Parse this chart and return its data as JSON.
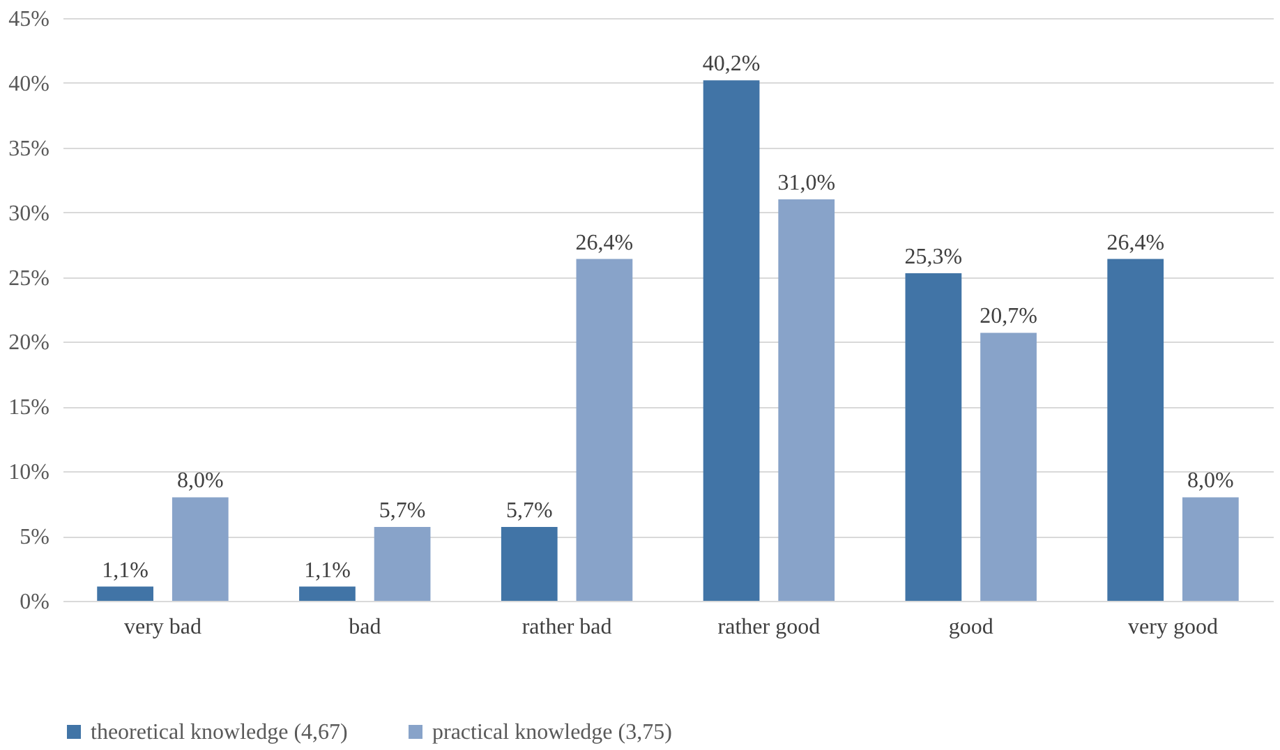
{
  "chart_data": {
    "type": "bar",
    "categories": [
      "very bad",
      "bad",
      "rather bad",
      "rather good",
      "good",
      "very good"
    ],
    "series": [
      {
        "name": "theoretical knowledge (4,67)",
        "color": "#4174a6",
        "values": [
          1.1,
          1.1,
          5.7,
          40.2,
          25.3,
          26.4
        ],
        "value_labels": [
          "1,1%",
          "1,1%",
          "5,7%",
          "40,2%",
          "25,3%",
          "26,4%"
        ]
      },
      {
        "name": "practical knowledge (3,75)",
        "color": "#88a3c9",
        "values": [
          8.0,
          5.7,
          26.4,
          31.0,
          20.7,
          8.0
        ],
        "value_labels": [
          "8,0%",
          "5,7%",
          "26,4%",
          "31,0%",
          "20,7%",
          "8,0%"
        ]
      }
    ],
    "ylim": [
      0,
      45
    ],
    "yticks": [
      {
        "value": 0,
        "label": "0%"
      },
      {
        "value": 5,
        "label": "5%"
      },
      {
        "value": 10,
        "label": "10%"
      },
      {
        "value": 15,
        "label": "15%"
      },
      {
        "value": 20,
        "label": "20%"
      },
      {
        "value": 25,
        "label": "25%"
      },
      {
        "value": 30,
        "label": "30%"
      },
      {
        "value": 35,
        "label": "35%"
      },
      {
        "value": 40,
        "label": "40%"
      },
      {
        "value": 45,
        "label": "45%"
      }
    ],
    "grid": "y",
    "legend": "bottom"
  }
}
